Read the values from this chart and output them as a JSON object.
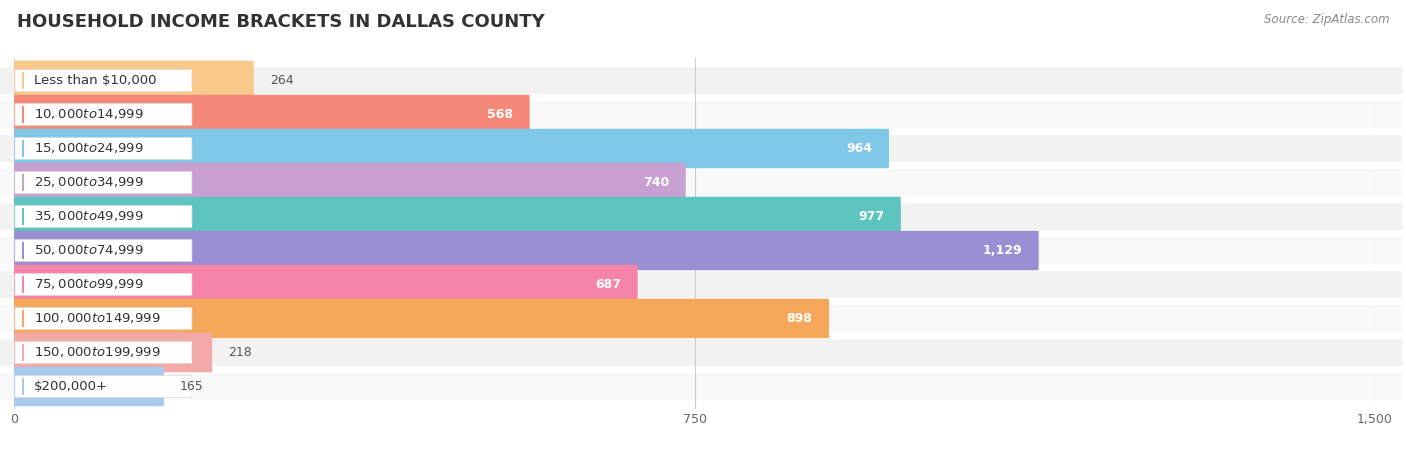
{
  "title": "HOUSEHOLD INCOME BRACKETS IN DALLAS COUNTY",
  "source": "Source: ZipAtlas.com",
  "categories": [
    "Less than $10,000",
    "$10,000 to $14,999",
    "$15,000 to $24,999",
    "$25,000 to $34,999",
    "$35,000 to $49,999",
    "$50,000 to $74,999",
    "$75,000 to $99,999",
    "$100,000 to $149,999",
    "$150,000 to $199,999",
    "$200,000+"
  ],
  "values": [
    264,
    568,
    964,
    740,
    977,
    1129,
    687,
    898,
    218,
    165
  ],
  "bar_colors": [
    "#F9C98A",
    "#F4897A",
    "#7FC8E8",
    "#C8A0D2",
    "#5DC4C0",
    "#9B8FD4",
    "#F585A8",
    "#F5A85A",
    "#F4A8A8",
    "#A8CAED"
  ],
  "value_label_inside": [
    false,
    true,
    true,
    true,
    true,
    true,
    true,
    true,
    false,
    false
  ],
  "xlim": [
    0,
    1500
  ],
  "xticks": [
    0,
    750,
    1500
  ],
  "title_fontsize": 13,
  "label_fontsize": 9.5,
  "value_fontsize": 9
}
